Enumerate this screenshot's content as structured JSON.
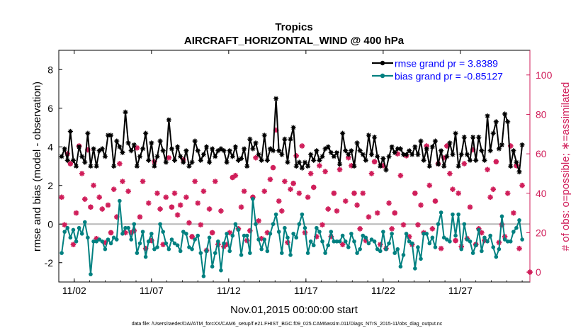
{
  "chart_data": {
    "type": "line",
    "title": "Tropics",
    "subtitle": "AIRCRAFT_HORIZONTAL_WIND @ 400 hPa",
    "xlabel": "Nov.01,2015 00:00:00 start",
    "ylabel_left": "rmse and bias (model - observation)",
    "ylabel_right": "# of obs: o=possible; ∗=assimilated",
    "x_ticks": [
      "11/02",
      "11/07",
      "11/12",
      "11/17",
      "11/22",
      "11/27"
    ],
    "x_tick_days": [
      1,
      6,
      11,
      16,
      21,
      26
    ],
    "xlim": [
      0,
      30.5
    ],
    "ylim_left": [
      -3,
      9
    ],
    "ylim_right": [
      -5,
      112.5
    ],
    "left_ticks": [
      -2,
      0,
      2,
      4,
      6,
      8
    ],
    "right_ticks": [
      0,
      20,
      40,
      60,
      80,
      100
    ],
    "legend_position": "top-right",
    "series": [
      {
        "name": "rmse grand pr = 3.8389",
        "color": "#000000",
        "axis": "left",
        "marker": "asterisk",
        "values": [
          3.5,
          3.9,
          3.3,
          4.8,
          3.3,
          3.0,
          4.0,
          3.5,
          3.2,
          4.7,
          3.0,
          3.9,
          3.0,
          3.8,
          3.9,
          3.5,
          4.6,
          4.6,
          3.0,
          4.3,
          4.0,
          3.7,
          5.8,
          4.2,
          3.8,
          4.1,
          3.0,
          3.5,
          3.9,
          4.7,
          3.3,
          4.2,
          3.0,
          3.5,
          4.3,
          3.8,
          3.2,
          5.4,
          3.9,
          3.3,
          4.0,
          3.5,
          3.2,
          3.8,
          3.0,
          3.2,
          4.3,
          3.8,
          3.3,
          3.6,
          4.0,
          3.2,
          3.9,
          3.5,
          3.8,
          3.9,
          3.8,
          3.2,
          3.8,
          3.5,
          4.0,
          3.3,
          3.4,
          3.9,
          3.0,
          4.4,
          3.9,
          4.2,
          3.6,
          3.3,
          4.6,
          3.3,
          3.9,
          3.8,
          6.5,
          3.8,
          3.6,
          4.4,
          3.2,
          4.4,
          5.0,
          3.0,
          3.2,
          2.9,
          3.2,
          3.0,
          3.6,
          3.3,
          3.8,
          3.3,
          3.5,
          3.9,
          4.0,
          3.7,
          3.5,
          3.7,
          3.1,
          4.7,
          3.8,
          3.6,
          3.8,
          3.0,
          4.2,
          3.8,
          3.6,
          3.3,
          4.6,
          3.6,
          4.5,
          3.5,
          3.0,
          3.4,
          2.8,
          3.5,
          4.0,
          3.7,
          3.9,
          3.9,
          3.6,
          3.6,
          3.8,
          3.6,
          4.0,
          3.6,
          4.3,
          3.3,
          3.9,
          3.0,
          4.0,
          4.3,
          3.1,
          3.8,
          3.0,
          3.5,
          4.2,
          3.6,
          4.7,
          3.0,
          3.6,
          4.5,
          3.6,
          3.3,
          4.5,
          3.3,
          4.5,
          3.8,
          3.3,
          5.6,
          3.8,
          4.7,
          5.3,
          3.9,
          4.1,
          5.7,
          5.3,
          3.0,
          3.8,
          3.2,
          2.7,
          4.1
        ]
      },
      {
        "name": "bias grand pr = -0.85127",
        "color": "#008080",
        "axis": "left",
        "marker": "circle",
        "values": [
          -1.5,
          -0.4,
          -0.2,
          -0.7,
          -0.3,
          -0.9,
          -0.2,
          -0.5,
          0.1,
          -0.7,
          -2.6,
          -0.9,
          -0.9,
          -0.8,
          -0.9,
          -1.3,
          -0.8,
          -1.0,
          -0.7,
          -0.8,
          1.2,
          -0.5,
          -0.2,
          -0.2,
          -0.8,
          0.0,
          -1.5,
          -1.0,
          -0.4,
          -1.7,
          -0.9,
          -0.5,
          -1.3,
          -1.2,
          0.0,
          -0.4,
          -1.0,
          -1.3,
          -0.8,
          -1.0,
          -1.1,
          -1.4,
          -0.4,
          -0.5,
          -1.2,
          -1.3,
          -0.8,
          -0.6,
          -1.5,
          -2.7,
          -1.4,
          -0.7,
          -2.2,
          -1.5,
          -0.9,
          -2.4,
          -1.0,
          -0.5,
          -1.4,
          -0.6,
          0.0,
          -0.3,
          -1.6,
          -0.6,
          -0.6,
          -1.5,
          1.3,
          0.0,
          -0.8,
          -1.3,
          -0.8,
          -1.4,
          -0.5,
          0.0,
          0.5,
          -0.4,
          -1.5,
          -0.2,
          -0.7,
          -1.6,
          -0.5,
          -0.7,
          0.0,
          0.5,
          -0.2,
          -1.5,
          -0.9,
          -1.1,
          -0.2,
          -0.4,
          -0.9,
          -1.5,
          -1.1,
          -0.4,
          -0.9,
          -0.9,
          -0.9,
          -0.6,
          -0.9,
          -1.2,
          -0.5,
          -0.9,
          -1.5,
          -1.3,
          -0.6,
          -0.7,
          -1.0,
          -0.8,
          -0.9,
          -1.3,
          -1.4,
          -0.4,
          -1.3,
          -1.0,
          -0.5,
          -1.5,
          -1.3,
          -2.2,
          -1.6,
          -0.5,
          -0.9,
          -1.0,
          -2.3,
          -1.2,
          -1.8,
          -0.5,
          -0.5,
          -1.0,
          -0.7,
          -1.2,
          0.0,
          0.6,
          -0.7,
          -0.8,
          -0.9,
          0.5,
          -0.6,
          0.5,
          -1.3,
          0.0,
          -0.8,
          -0.9,
          -1.5,
          -1.1,
          -0.3,
          -1.4,
          -0.7,
          -0.9,
          -0.6,
          -1.2,
          -1.7,
          -1.3,
          0.4,
          -0.8,
          -0.9,
          -0.9,
          -0.4,
          -0.2,
          0.2,
          -0.8
        ]
      },
      {
        "name": "possible",
        "color": "#D01E5A",
        "axis": "right",
        "marker": "o",
        "values": [
          38,
          24,
          60,
          55,
          14,
          30,
          64,
          50,
          37,
          62,
          33,
          44,
          17,
          38,
          32,
          15,
          34,
          20,
          42,
          28,
          55,
          46,
          20,
          41,
          20,
          21,
          63,
          28,
          46,
          12,
          35,
          16,
          56,
          40,
          32,
          14,
          38,
          58,
          33,
          40,
          29,
          34,
          57,
          38,
          25,
          18,
          46,
          35,
          24,
          41,
          11,
          32,
          20,
          46,
          14,
          31,
          13,
          14,
          20,
          48,
          49,
          22,
          33,
          41,
          16,
          21,
          38,
          58,
          26,
          17,
          41,
          20,
          47,
          53,
          72,
          36,
          31,
          46,
          15,
          42,
          45,
          59,
          40,
          64,
          20,
          38,
          50,
          43,
          18,
          54,
          24,
          51,
          32,
          18,
          40,
          31,
          52,
          14,
          36,
          58,
          54,
          40,
          34,
          22,
          40,
          16,
          28,
          50,
          56,
          30,
          14,
          54,
          12,
          35,
          22,
          30,
          60,
          49,
          24,
          59,
          18,
          14,
          40,
          24,
          34,
          20,
          64,
          44,
          22,
          36,
          55,
          12,
          58,
          64,
          50,
          42,
          16,
          40,
          13,
          55,
          17,
          33,
          62,
          14,
          22,
          20,
          16,
          52,
          38,
          42,
          56,
          15,
          24,
          18,
          40,
          64,
          30,
          54,
          12,
          44
        ]
      },
      {
        "name": "assimilated",
        "color": "#D01E5A",
        "axis": "right",
        "marker": "asterisk",
        "values": [
          38,
          24,
          60,
          55,
          14,
          30,
          64,
          50,
          37,
          62,
          33,
          44,
          17,
          38,
          32,
          15,
          34,
          20,
          42,
          28,
          55,
          46,
          20,
          41,
          20,
          21,
          63,
          28,
          46,
          12,
          35,
          16,
          56,
          40,
          32,
          14,
          38,
          58,
          33,
          40,
          29,
          34,
          57,
          38,
          25,
          18,
          46,
          35,
          24,
          41,
          11,
          32,
          20,
          46,
          14,
          31,
          13,
          14,
          20,
          48,
          49,
          22,
          33,
          41,
          16,
          21,
          38,
          58,
          26,
          17,
          41,
          20,
          47,
          53,
          72,
          36,
          31,
          46,
          15,
          42,
          45,
          59,
          40,
          64,
          20,
          38,
          50,
          43,
          18,
          54,
          24,
          51,
          32,
          18,
          40,
          31,
          52,
          14,
          36,
          58,
          54,
          40,
          34,
          22,
          40,
          16,
          28,
          50,
          56,
          30,
          14,
          54,
          12,
          35,
          22,
          30,
          60,
          49,
          24,
          59,
          18,
          14,
          40,
          24,
          34,
          20,
          64,
          44,
          22,
          36,
          55,
          12,
          58,
          64,
          50,
          42,
          16,
          40,
          13,
          55,
          17,
          33,
          62,
          14,
          22,
          20,
          16,
          52,
          38,
          42,
          56,
          15,
          24,
          18,
          40,
          64,
          30,
          54,
          12,
          44
        ]
      }
    ],
    "footer": "data file: /Users/raeder/DAI/ATM_forcXX/CAM6_setup/f.e21.FHIST_BGC.f09_025.CAM6assim.011/Diags_NTrS_2015-11/obs_diag_output.nc"
  }
}
